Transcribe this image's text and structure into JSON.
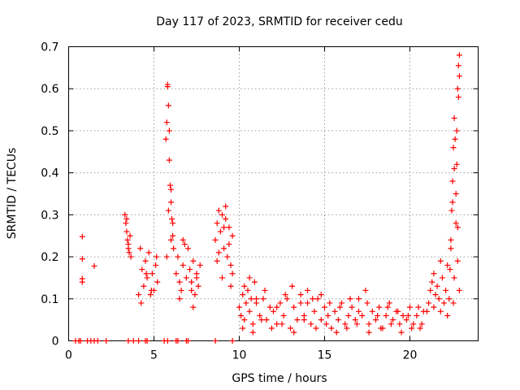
{
  "chart_data": {
    "type": "scatter",
    "title": "Day 117 of 2023, SRMTID for receiver cedu",
    "xlabel": "GPS time / hours",
    "ylabel": "SRMTID / TECUs",
    "xlim": [
      0,
      24
    ],
    "ylim": [
      0,
      0.7
    ],
    "x_ticks": [
      0,
      5,
      10,
      15,
      20
    ],
    "y_ticks": [
      0,
      0.1,
      0.2,
      0.3,
      0.4,
      0.5,
      0.6,
      0.7
    ],
    "x_tick_labels": [
      "0",
      "5",
      "10",
      "15",
      "20"
    ],
    "y_tick_labels": [
      "0",
      "0.1",
      "0.2",
      "0.3",
      "0.4",
      "0.5",
      "0.6",
      "0.7"
    ],
    "grid": true,
    "marker": "+",
    "color": "#ff0000",
    "series": [
      {
        "name": "SRMTID",
        "x": [
          0.4,
          0.6,
          0.7,
          1.1,
          1.3,
          1.5,
          1.7,
          2.2,
          3.5,
          3.8,
          4.1,
          4.5,
          4.6,
          5.6,
          5.8,
          6.3,
          6.4,
          6.9,
          7.0,
          8.6,
          9.6,
          0.8,
          0.8,
          0.8,
          0.8,
          1.5,
          3.3,
          3.35,
          3.4,
          3.45,
          3.5,
          3.55,
          3.6,
          3.65,
          3.4,
          3.5,
          4.1,
          4.2,
          4.3,
          4.4,
          4.5,
          4.6,
          4.7,
          4.8,
          4.9,
          5.0,
          5.1,
          5.2,
          4.25,
          4.55,
          4.85,
          5.15,
          5.7,
          5.75,
          5.8,
          5.85,
          5.9,
          5.95,
          6.0,
          6.05,
          6.1,
          6.15,
          5.8,
          5.9,
          6.0,
          6.1,
          5.75,
          5.85,
          6.0,
          6.3,
          6.4,
          6.5,
          6.6,
          6.7,
          6.8,
          6.9,
          7.0,
          6.5,
          6.7,
          7.1,
          7.2,
          7.3,
          7.4,
          7.5,
          7.6,
          7.7,
          7.3,
          7.5,
          7.2,
          8.6,
          8.7,
          8.8,
          8.9,
          9.0,
          9.1,
          9.2,
          9.3,
          9.4,
          9.5,
          9.6,
          8.8,
          9.0,
          9.2,
          9.4,
          9.6,
          8.7,
          9.1,
          9.5,
          10.0,
          10.1,
          10.2,
          10.3,
          10.4,
          10.5,
          10.6,
          10.7,
          10.8,
          10.9,
          11.0,
          11.2,
          11.4,
          11.6,
          11.8,
          12.0,
          12.2,
          12.4,
          12.6,
          12.8,
          13.0,
          13.2,
          13.4,
          13.6,
          13.8,
          14.0,
          14.2,
          14.4,
          14.6,
          14.8,
          15.0,
          15.2,
          15.4,
          15.6,
          15.8,
          16.0,
          16.2,
          16.4,
          16.6,
          16.8,
          17.0,
          17.2,
          17.4,
          17.6,
          17.8,
          18.0,
          18.2,
          18.4,
          18.6,
          18.8,
          19.0,
          19.2,
          19.4,
          19.6,
          19.8,
          20.0,
          20.2,
          20.4,
          20.6,
          20.8,
          10.3,
          10.6,
          11.0,
          11.5,
          12.2,
          12.7,
          13.1,
          13.6,
          14.0,
          14.3,
          14.8,
          15.3,
          15.9,
          16.5,
          17.0,
          17.5,
          18.1,
          18.7,
          19.3,
          19.9,
          20.5,
          10.2,
          10.8,
          11.3,
          11.9,
          12.5,
          13.2,
          13.8,
          14.5,
          15.1,
          15.7,
          16.3,
          16.9,
          17.6,
          18.3,
          18.9,
          19.5,
          20.1,
          20.7,
          21.0,
          21.1,
          21.2,
          21.3,
          21.4,
          21.5,
          21.6,
          21.7,
          21.8,
          21.9,
          22.0,
          22.1,
          22.2,
          22.3,
          21.4,
          21.8,
          22.2,
          22.35,
          22.4,
          22.45,
          22.5,
          22.55,
          22.6,
          22.65,
          22.7,
          22.75,
          22.8,
          22.85,
          22.9,
          22.9,
          22.85,
          22.8,
          22.75,
          22.6,
          22.5,
          22.4,
          22.7,
          22.6,
          22.8,
          22.9,
          22.55
        ],
        "y": [
          0,
          0,
          0,
          0,
          0,
          0,
          0,
          0,
          0,
          0,
          0,
          0,
          0,
          0,
          0,
          0,
          0,
          0,
          0,
          0,
          0,
          0.248,
          0.195,
          0.148,
          0.14,
          0.178,
          0.3,
          0.28,
          0.26,
          0.24,
          0.22,
          0.21,
          0.25,
          0.2,
          0.29,
          0.23,
          0.11,
          0.22,
          0.17,
          0.13,
          0.19,
          0.15,
          0.21,
          0.11,
          0.16,
          0.12,
          0.18,
          0.14,
          0.09,
          0.16,
          0.12,
          0.2,
          0.48,
          0.52,
          0.605,
          0.56,
          0.43,
          0.37,
          0.33,
          0.29,
          0.25,
          0.22,
          0.61,
          0.5,
          0.36,
          0.28,
          0.2,
          0.31,
          0.24,
          0.16,
          0.2,
          0.14,
          0.12,
          0.18,
          0.23,
          0.15,
          0.22,
          0.1,
          0.24,
          0.17,
          0.14,
          0.19,
          0.11,
          0.16,
          0.13,
          0.18,
          0.08,
          0.15,
          0.12,
          0.24,
          0.28,
          0.31,
          0.26,
          0.3,
          0.22,
          0.29,
          0.2,
          0.27,
          0.18,
          0.25,
          0.21,
          0.15,
          0.32,
          0.23,
          0.16,
          0.19,
          0.27,
          0.13,
          0.08,
          0.06,
          0.11,
          0.05,
          0.09,
          0.12,
          0.07,
          0.1,
          0.04,
          0.14,
          0.09,
          0.06,
          0.1,
          0.05,
          0.08,
          0.07,
          0.04,
          0.09,
          0.06,
          0.1,
          0.03,
          0.08,
          0.05,
          0.11,
          0.06,
          0.09,
          0.04,
          0.07,
          0.1,
          0.05,
          0.08,
          0.06,
          0.03,
          0.07,
          0.05,
          0.09,
          0.04,
          0.06,
          0.08,
          0.05,
          0.1,
          0.06,
          0.12,
          0.04,
          0.07,
          0.05,
          0.08,
          0.03,
          0.06,
          0.09,
          0.05,
          0.07,
          0.04,
          0.06,
          0.05,
          0.08,
          0.04,
          0.06,
          0.03,
          0.07,
          0.13,
          0.15,
          0.1,
          0.12,
          0.08,
          0.11,
          0.13,
          0.09,
          0.12,
          0.1,
          0.11,
          0.09,
          0.08,
          0.1,
          0.07,
          0.09,
          0.06,
          0.08,
          0.07,
          0.06,
          0.08,
          0.03,
          0.02,
          0.05,
          0.03,
          0.04,
          0.02,
          0.05,
          0.03,
          0.04,
          0.02,
          0.03,
          0.04,
          0.02,
          0.03,
          0.04,
          0.02,
          0.03,
          0.04,
          0.07,
          0.09,
          0.12,
          0.14,
          0.08,
          0.11,
          0.13,
          0.1,
          0.07,
          0.15,
          0.09,
          0.12,
          0.18,
          0.1,
          0.16,
          0.19,
          0.06,
          0.17,
          0.24,
          0.31,
          0.38,
          0.46,
          0.53,
          0.48,
          0.35,
          0.42,
          0.27,
          0.58,
          0.63,
          0.68,
          0.655,
          0.6,
          0.5,
          0.41,
          0.33,
          0.22,
          0.28,
          0.15,
          0.19,
          0.12,
          0.09
        ]
      }
    ]
  }
}
